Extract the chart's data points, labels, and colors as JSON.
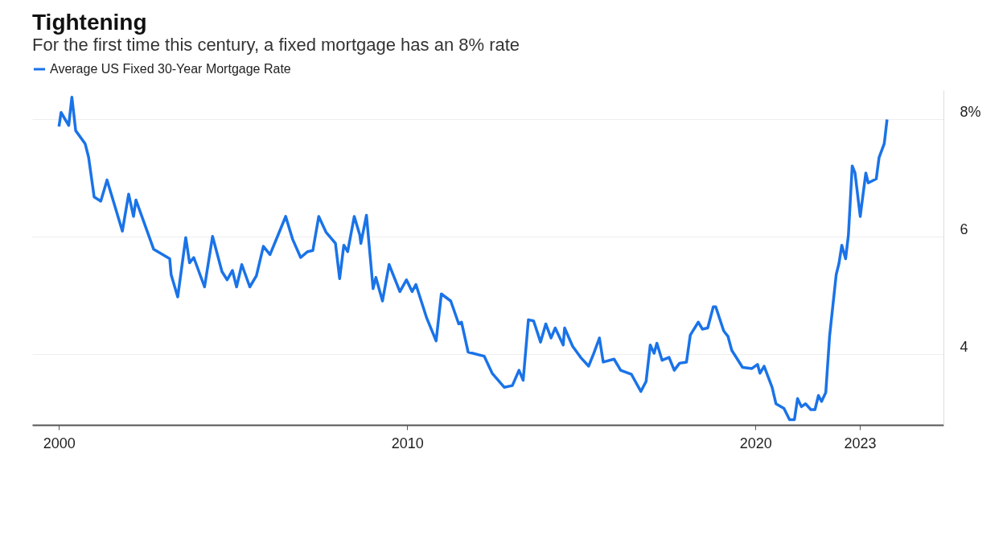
{
  "chart_data": {
    "type": "line",
    "title": "Tightening",
    "subtitle": "For the first time this century, a fixed mortgage has an 8% rate",
    "x": [
      2000.0,
      2000.06,
      2000.28,
      2000.37,
      2000.48,
      2000.75,
      2000.85,
      2001.01,
      2001.2,
      2001.38,
      2001.82,
      2002.0,
      2002.14,
      2002.21,
      2002.72,
      2003.18,
      2003.22,
      2003.41,
      2003.64,
      2003.75,
      2003.87,
      2004.18,
      2004.41,
      2004.68,
      2004.83,
      2004.98,
      2005.1,
      2005.25,
      2005.48,
      2005.67,
      2005.87,
      2006.06,
      2006.29,
      2006.51,
      2006.71,
      2006.94,
      2007.14,
      2007.29,
      2007.46,
      2007.67,
      2007.94,
      2008.06,
      2008.18,
      2008.29,
      2008.48,
      2008.64,
      2008.67,
      2008.83,
      2009.02,
      2009.1,
      2009.29,
      2009.48,
      2009.79,
      2009.98,
      2010.14,
      2010.25,
      2010.56,
      2010.83,
      2010.98,
      2011.25,
      2011.48,
      2011.56,
      2011.75,
      2012.21,
      2012.44,
      2012.79,
      2013.02,
      2013.21,
      2013.33,
      2013.48,
      2013.63,
      2013.83,
      2013.98,
      2014.13,
      2014.25,
      2014.48,
      2014.52,
      2014.75,
      2014.98,
      2015.21,
      2015.36,
      2015.52,
      2015.63,
      2015.94,
      2016.13,
      2016.44,
      2016.71,
      2016.86,
      2016.98,
      2017.09,
      2017.17,
      2017.32,
      2017.52,
      2017.67,
      2017.82,
      2018.02,
      2018.13,
      2018.36,
      2018.48,
      2018.63,
      2018.79,
      2018.86,
      2019.09,
      2019.21,
      2019.32,
      2019.63,
      2019.9,
      2020.06,
      2020.13,
      2020.25,
      2020.48,
      2020.59,
      2020.82,
      2020.98,
      2021.12,
      2021.21,
      2021.32,
      2021.44,
      2021.59,
      2021.71,
      2021.81,
      2021.9,
      2022.02,
      2022.13,
      2022.32,
      2022.4,
      2022.48,
      2022.59,
      2022.67,
      2022.78,
      2022.86,
      2023.01,
      2023.17,
      2023.24,
      2023.47,
      2023.55,
      2023.7,
      2023.78
    ],
    "series": [
      {
        "name": "Average US Fixed 30-Year Mortgage Rate",
        "color": "#1a73e8",
        "values": [
          7.88,
          8.12,
          7.9,
          8.38,
          7.81,
          7.59,
          7.36,
          6.68,
          6.61,
          6.97,
          6.1,
          6.73,
          6.35,
          6.63,
          5.79,
          5.63,
          5.36,
          4.98,
          5.99,
          5.56,
          5.65,
          5.15,
          6.01,
          5.41,
          5.27,
          5.43,
          5.15,
          5.53,
          5.15,
          5.34,
          5.84,
          5.7,
          6.03,
          6.35,
          5.96,
          5.65,
          5.75,
          5.77,
          6.35,
          6.08,
          5.89,
          5.29,
          5.86,
          5.75,
          6.35,
          6.03,
          5.89,
          6.37,
          5.12,
          5.31,
          4.91,
          5.53,
          5.07,
          5.27,
          5.07,
          5.19,
          4.62,
          4.23,
          5.03,
          4.91,
          4.52,
          4.55,
          4.04,
          3.97,
          3.68,
          3.44,
          3.47,
          3.73,
          3.56,
          4.59,
          4.57,
          4.21,
          4.52,
          4.28,
          4.45,
          4.16,
          4.45,
          4.14,
          3.95,
          3.8,
          4.02,
          4.28,
          3.87,
          3.92,
          3.73,
          3.66,
          3.37,
          3.54,
          4.16,
          4.02,
          4.19,
          3.9,
          3.95,
          3.73,
          3.85,
          3.87,
          4.33,
          4.55,
          4.43,
          4.45,
          4.81,
          4.81,
          4.4,
          4.31,
          4.07,
          3.78,
          3.76,
          3.83,
          3.68,
          3.8,
          3.44,
          3.16,
          3.08,
          2.89,
          2.89,
          3.25,
          3.11,
          3.16,
          3.06,
          3.06,
          3.3,
          3.2,
          3.35,
          4.31,
          5.36,
          5.55,
          5.86,
          5.63,
          6.03,
          7.21,
          7.09,
          6.35,
          7.09,
          6.92,
          6.99,
          7.35,
          7.59,
          8.0
        ]
      }
    ],
    "xlim": [
      1999.23,
      2025.4
    ],
    "xticks": [
      2000,
      2010,
      2020,
      2023
    ],
    "ylim": [
      2.8,
      8.5
    ],
    "yticks": [
      {
        "value": 4,
        "label": "4"
      },
      {
        "value": 6,
        "label": "6"
      },
      {
        "value": 8,
        "label": "8%"
      }
    ],
    "grid": "y",
    "legend": "top left",
    "marker": "none",
    "line_style": "solid"
  }
}
